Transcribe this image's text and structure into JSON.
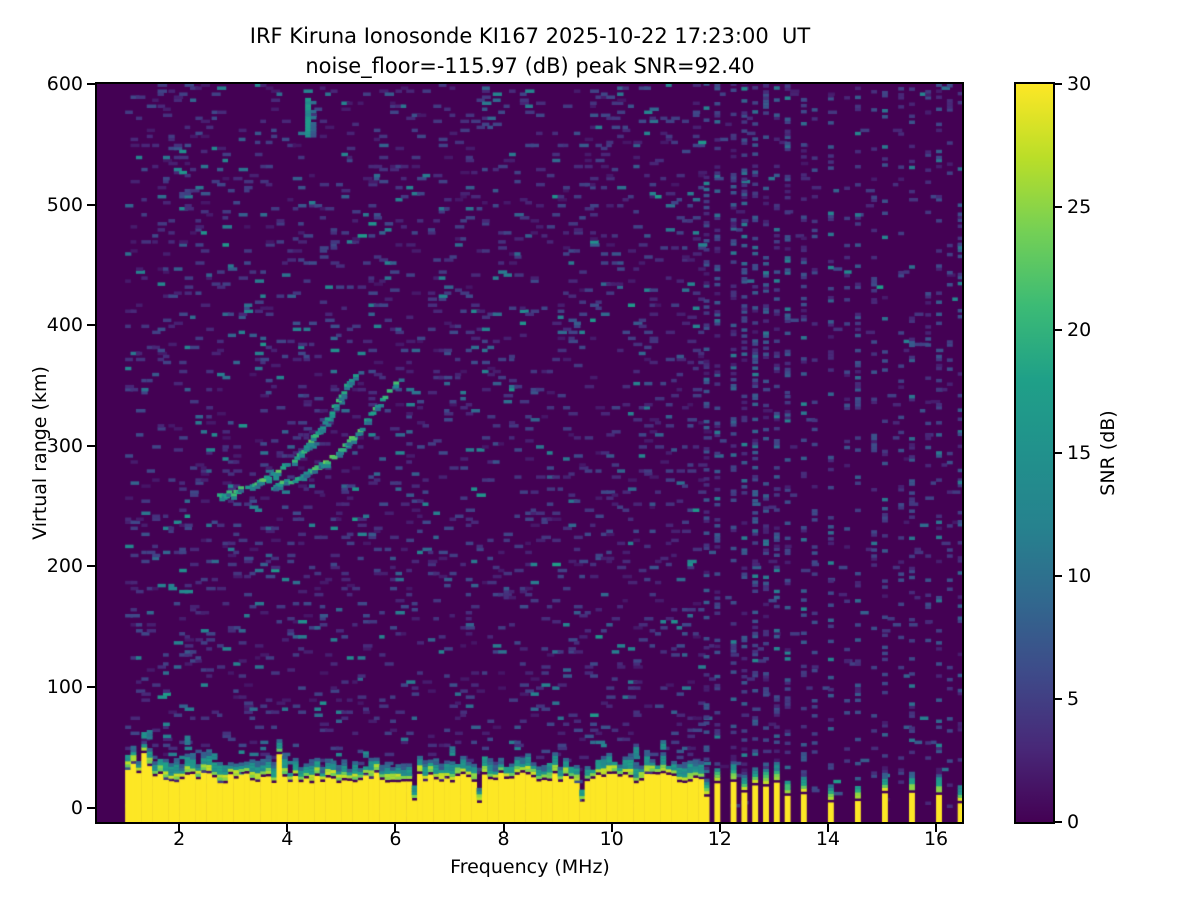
{
  "header": {
    "title_line1": "IRF Kiruna Ionosonde KI167 2025-10-22 17:23:00  UT",
    "title_line2": "noise_floor=-115.97 (dB) peak SNR=92.40"
  },
  "chart_data": {
    "type": "heatmap",
    "title": "IRF Kiruna Ionosonde KI167 2025-10-22 17:23:00 UT",
    "subtitle": "noise_floor=-115.97 (dB) peak SNR=92.40",
    "station": "IRF Kiruna Ionosonde KI167",
    "timestamp_ut": "2025-10-22 17:23:00",
    "noise_floor_db": -115.97,
    "peak_snr_db": 92.4,
    "xlabel": "Frequency (MHz)",
    "ylabel": "Virtual range (km)",
    "colorbar_label": "SNR (dB)",
    "xlim": [
      0.48,
      16.48
    ],
    "ylim": [
      -12,
      600
    ],
    "clim": [
      0,
      30
    ],
    "x_ticks": [
      2,
      4,
      6,
      8,
      10,
      12,
      14,
      16
    ],
    "y_ticks": [
      0,
      100,
      200,
      300,
      400,
      500,
      600
    ],
    "colorbar_ticks": [
      0,
      5,
      10,
      15,
      20,
      25,
      30
    ],
    "grid": false,
    "colormap": "viridis",
    "colormap_stops": [
      [
        0.0,
        "#440154"
      ],
      [
        0.1,
        "#482878"
      ],
      [
        0.2,
        "#3e4a89"
      ],
      [
        0.3,
        "#31688e"
      ],
      [
        0.4,
        "#26828e"
      ],
      [
        0.5,
        "#21918c"
      ],
      [
        0.6,
        "#1fa088"
      ],
      [
        0.7,
        "#3cbb75"
      ],
      [
        0.8,
        "#74d055"
      ],
      [
        0.9,
        "#bade28"
      ],
      [
        1.0,
        "#fde725"
      ]
    ],
    "background_color": "#440154",
    "saturated_color": "#fde725",
    "data_freq_start_mhz": 1.0,
    "freq_step_mhz": 0.1,
    "range_step_km": 2.5,
    "features": {
      "ground_clutter": {
        "freq_start": 1.0,
        "freq_end": 11.65,
        "top_km_mean": 24,
        "top_km_jitter": 9,
        "dip_freqs": [
          6.3,
          7.45,
          9.35
        ],
        "spike_freqs": [
          1.3,
          2.1,
          3.5,
          4.9,
          10.4
        ]
      },
      "echo_traces": [
        {
          "name": "o-mode",
          "points_freq_km": [
            [
              2.7,
              257
            ],
            [
              2.83,
              258
            ],
            [
              2.96,
              260
            ],
            [
              3.09,
              262
            ],
            [
              3.22,
              264
            ],
            [
              3.35,
              266
            ],
            [
              3.48,
              269
            ],
            [
              3.61,
              272
            ],
            [
              3.74,
              275
            ],
            [
              3.87,
              279
            ],
            [
              4.0,
              284
            ],
            [
              4.13,
              289
            ],
            [
              4.26,
              295
            ],
            [
              4.39,
              302
            ],
            [
              4.52,
              310
            ],
            [
              4.65,
              318
            ],
            [
              4.78,
              327
            ],
            [
              4.9,
              336
            ],
            [
              5.0,
              344
            ],
            [
              5.1,
              350
            ],
            [
              5.18,
              355
            ],
            [
              5.25,
              358
            ]
          ]
        },
        {
          "name": "x-mode",
          "points_freq_km": [
            [
              3.7,
              265
            ],
            [
              3.86,
              267
            ],
            [
              4.02,
              269
            ],
            [
              4.18,
              272
            ],
            [
              4.34,
              276
            ],
            [
              4.5,
              280
            ],
            [
              4.66,
              285
            ],
            [
              4.82,
              291
            ],
            [
              4.98,
              297
            ],
            [
              5.14,
              304
            ],
            [
              5.3,
              312
            ],
            [
              5.46,
              321
            ],
            [
              5.62,
              331
            ],
            [
              5.76,
              340
            ],
            [
              5.88,
              348
            ],
            [
              6.0,
              355
            ]
          ]
        }
      ],
      "high_altitude_streak": {
        "freq": 4.33,
        "km_start": 556,
        "km_end": 588
      },
      "rfi_stripes_strong": [
        11.73,
        11.95,
        12.17,
        12.39,
        12.62,
        12.82,
        13.02,
        13.22,
        13.48,
        14.0,
        14.52,
        15.04,
        15.52,
        16.0,
        16.35
      ],
      "rfi_stripes_weak": [
        13.7,
        14.25,
        14.78,
        15.28,
        15.76,
        16.2
      ],
      "noise_speckle": {
        "dense_below_mhz": 11.65,
        "density_dense": 0.085,
        "density_sparse": 0.012
      }
    }
  }
}
